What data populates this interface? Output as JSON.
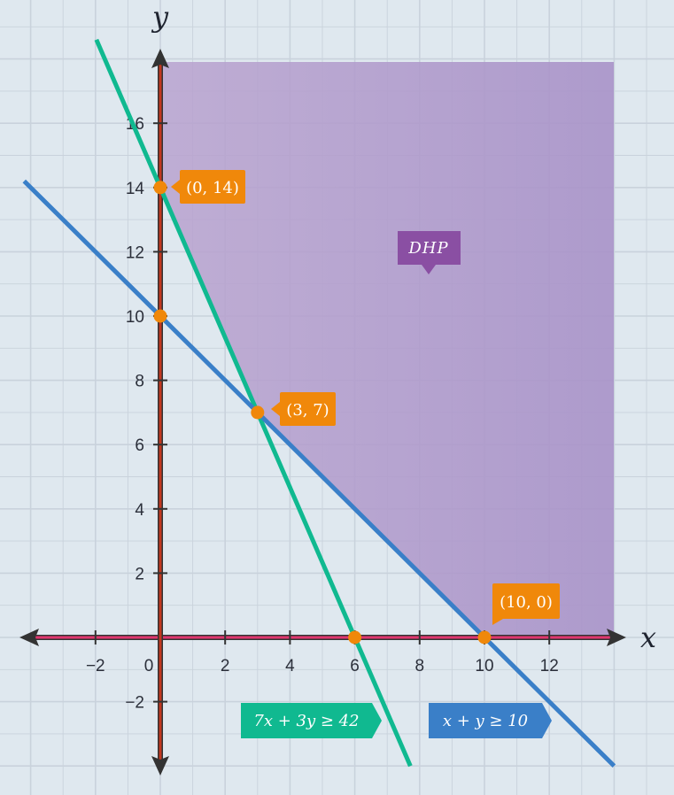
{
  "chart_data": {
    "type": "line",
    "title": "",
    "xlabel": "x",
    "ylabel": "y",
    "xlim": [
      -4,
      14.2
    ],
    "ylim": [
      -4,
      18.5
    ],
    "x_ticks": [
      -2,
      0,
      2,
      4,
      6,
      8,
      10,
      12
    ],
    "y_ticks": [
      -2,
      2,
      4,
      6,
      8,
      10,
      12,
      14,
      16
    ],
    "x_tick_labels": [
      "−2",
      "0",
      "2",
      "4",
      "6",
      "8",
      "10",
      "12"
    ],
    "y_tick_labels": [
      "−2",
      "2",
      "4",
      "6",
      "8",
      "10",
      "12",
      "14",
      "16"
    ],
    "grid": true,
    "series": [
      {
        "name": "7x + 3y ≥ 42",
        "label": "7x + 3y ≥ 42",
        "equation": {
          "a": 7,
          "b": 3,
          "c": 42
        },
        "color": "#10b990"
      },
      {
        "name": "x + y ≥ 10",
        "label": "x + y ≥ 10",
        "equation": {
          "a": 1,
          "b": 1,
          "c": 10
        },
        "color": "#3a7fc8"
      }
    ],
    "points": [
      {
        "x": 0,
        "y": 14,
        "label": "(0, 14)"
      },
      {
        "x": 0,
        "y": 10,
        "label": ""
      },
      {
        "x": 3,
        "y": 7,
        "label": "(3, 7)"
      },
      {
        "x": 6,
        "y": 0,
        "label": ""
      },
      {
        "x": 10,
        "y": 0,
        "label": "(10, 0)"
      }
    ],
    "region": {
      "label": "DHP",
      "vertices": [
        [
          0,
          14
        ],
        [
          3,
          7
        ],
        [
          10,
          0
        ]
      ]
    },
    "colors": {
      "background": "#dfe8ef",
      "grid": "#c9d2dc",
      "region": "#9b7fc0",
      "point": "#f0880a",
      "callout": "#f0880a",
      "region_label": "#8a4fa3",
      "x_axis": "#e0356e",
      "y_axis": "#c2371f",
      "axis_arrow": "#333333"
    }
  }
}
